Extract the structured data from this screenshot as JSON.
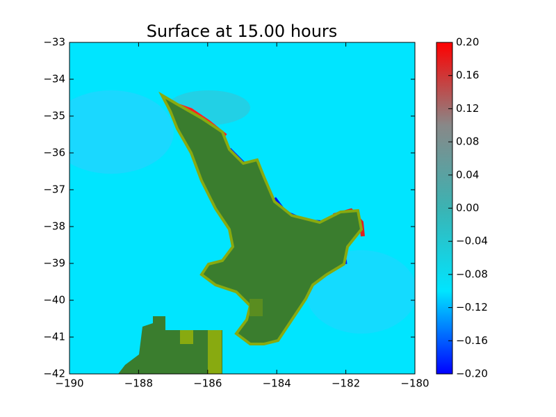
{
  "chart_data": {
    "type": "heatmap",
    "title": "Surface at 15.00 hours",
    "xlim": [
      -190,
      -180
    ],
    "xticks": [
      {
        "value": -190,
        "label": "−190"
      },
      {
        "value": -188,
        "label": "−188"
      },
      {
        "value": -186,
        "label": "−186"
      },
      {
        "value": -184,
        "label": "−184"
      },
      {
        "value": -182,
        "label": "−182"
      },
      {
        "value": -180,
        "label": "−180"
      }
    ],
    "ylim": [
      -42,
      -33
    ],
    "yticks": [
      {
        "value": -42,
        "label": "−42"
      },
      {
        "value": -41,
        "label": "−41"
      },
      {
        "value": -40,
        "label": "−40"
      },
      {
        "value": -39,
        "label": "−39"
      },
      {
        "value": -38,
        "label": "−38"
      },
      {
        "value": -37,
        "label": "−37"
      },
      {
        "value": -36,
        "label": "−36"
      },
      {
        "value": -35,
        "label": "−35"
      },
      {
        "value": -34,
        "label": "−34"
      },
      {
        "value": -33,
        "label": "−33"
      }
    ],
    "colorbar": {
      "clim": [
        -0.2,
        0.2
      ],
      "colors": [
        "#0000ff",
        "#00e5ff",
        "#3bb3b3",
        "#888888",
        "#ff0000"
      ],
      "ticks": [
        {
          "value": -0.2,
          "label": "−0.20"
        },
        {
          "value": -0.16,
          "label": "−0.16"
        },
        {
          "value": -0.12,
          "label": "−0.12"
        },
        {
          "value": -0.08,
          "label": "−0.08"
        },
        {
          "value": -0.04,
          "label": "−0.04"
        },
        {
          "value": 0,
          "label": "0.00"
        },
        {
          "value": 0.04,
          "label": "0.04"
        },
        {
          "value": 0.08,
          "label": "0.08"
        },
        {
          "value": 0.12,
          "label": "0.12"
        },
        {
          "value": 0.16,
          "label": "0.16"
        },
        {
          "value": 0.2,
          "label": "0.20"
        }
      ]
    }
  }
}
